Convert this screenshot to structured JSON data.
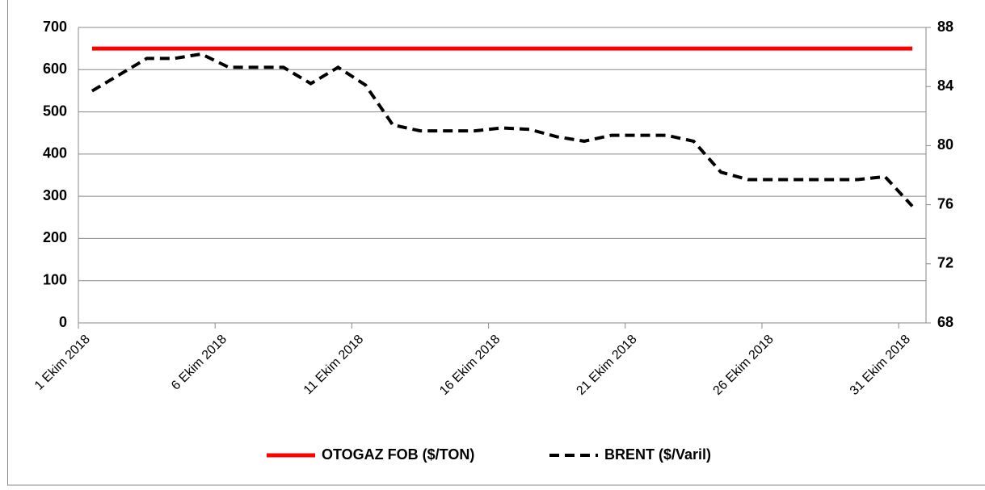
{
  "chart_data": {
    "type": "line",
    "categories": [
      "1 Ekim 2018",
      null,
      null,
      null,
      null,
      "6 Ekim 2018",
      null,
      null,
      null,
      null,
      "11 Ekim 2018",
      null,
      null,
      null,
      null,
      "16 Ekim 2018",
      null,
      null,
      null,
      null,
      "21 Ekim 2018",
      null,
      null,
      null,
      null,
      "26 Ekim 2018",
      null,
      null,
      null,
      null,
      "31 Ekim 2018"
    ],
    "series": [
      {
        "name": "OTOGAZ FOB ($/TON)",
        "color": "#ff0000",
        "dash": false,
        "axis": "y",
        "values": [
          650,
          650,
          650,
          650,
          650,
          650,
          650,
          650,
          650,
          650,
          650,
          650,
          650,
          650,
          650,
          650,
          650,
          650,
          650,
          650,
          650,
          650,
          650,
          650,
          650,
          650,
          650,
          650,
          650,
          650,
          650
        ]
      },
      {
        "name": "BRENT ($/Varil)",
        "color": "#000000",
        "dash": true,
        "axis": "y2",
        "values": [
          83.7,
          84.8,
          85.9,
          85.9,
          86.2,
          85.3,
          85.3,
          85.3,
          84.2,
          85.3,
          84.1,
          81.4,
          81.0,
          81.0,
          81.0,
          81.2,
          81.1,
          80.6,
          80.3,
          80.7,
          80.7,
          80.7,
          80.3,
          78.2,
          77.7,
          77.7,
          77.7,
          77.7,
          77.7,
          77.9,
          75.9
        ]
      }
    ],
    "ylim": [
      0,
      700
    ],
    "yticks": [
      0,
      100,
      200,
      300,
      400,
      500,
      600,
      700
    ],
    "y2lim": [
      68,
      88
    ],
    "y2ticks": [
      68,
      72,
      76,
      80,
      84,
      88
    ],
    "grid": true,
    "legend": "bottom"
  }
}
